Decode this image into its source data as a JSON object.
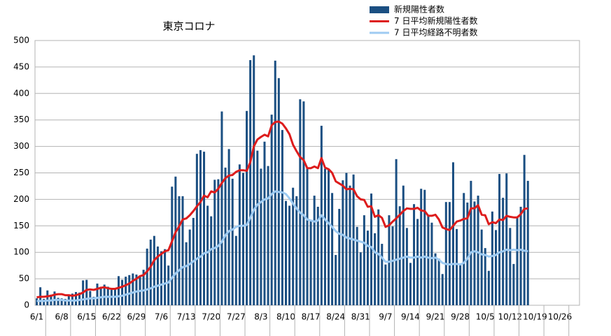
{
  "chart_data": {
    "type": "bar_line",
    "title": "東京コロナ",
    "categories": [
      "6/1",
      null,
      null,
      null,
      null,
      null,
      null,
      "6/8",
      null,
      null,
      null,
      null,
      null,
      null,
      "6/15",
      null,
      null,
      null,
      null,
      null,
      null,
      "6/22",
      null,
      null,
      null,
      null,
      null,
      null,
      "6/29",
      null,
      null,
      null,
      null,
      null,
      null,
      "7/6",
      null,
      null,
      null,
      null,
      null,
      null,
      "7/13",
      null,
      null,
      null,
      null,
      null,
      null,
      "7/20",
      null,
      null,
      null,
      null,
      null,
      null,
      "7/27",
      null,
      null,
      null,
      null,
      null,
      null,
      "8/3",
      null,
      null,
      null,
      null,
      null,
      null,
      "8/10",
      null,
      null,
      null,
      null,
      null,
      null,
      "8/17",
      null,
      null,
      null,
      null,
      null,
      null,
      "8/24",
      null,
      null,
      null,
      null,
      null,
      null,
      "8/31",
      null,
      null,
      null,
      null,
      null,
      null,
      "9/7",
      null,
      null,
      null,
      null,
      null,
      null,
      "9/14",
      null,
      null,
      null,
      null,
      null,
      null,
      "9/21",
      null,
      null,
      null,
      null,
      null,
      null,
      "9/28",
      null,
      null,
      null,
      null,
      null,
      null,
      "10/5",
      null,
      null,
      null,
      null,
      null,
      null,
      "10/12",
      null,
      null,
      null,
      null,
      null,
      null,
      "10/19",
      null,
      null,
      null,
      null,
      null,
      null,
      "10/26",
      null,
      null,
      null,
      null,
      null
    ],
    "series": [
      {
        "name": "新規陽性者数",
        "kind": "bar",
        "color": "#1b4f82",
        "values": [
          13,
          34,
          12,
          28,
          20,
          26,
          14,
          13,
          12,
          18,
          22,
          25,
          24,
          47,
          48,
          27,
          16,
          41,
          35,
          39,
          35,
          29,
          31,
          55,
          48,
          54,
          57,
          60,
          58,
          54,
          67,
          107,
          124,
          131,
          111,
          102,
          106,
          75,
          224,
          243,
          206,
          206,
          119,
          143,
          165,
          286,
          293,
          290,
          188,
          168,
          237,
          238,
          366,
          260,
          295,
          239,
          131,
          266,
          250,
          367,
          463,
          472,
          292,
          258,
          309,
          263,
          360,
          462,
          429,
          331,
          197,
          188,
          222,
          206,
          389,
          385,
          260,
          161,
          207,
          186,
          339,
          258,
          256,
          212,
          95,
          182,
          236,
          250,
          226,
          247,
          148,
          100,
          170,
          141,
          211,
          136,
          181,
          116,
          77,
          170,
          149,
          276,
          187,
          226,
          146,
          80,
          191,
          163,
          220,
          218,
          170,
          156,
          98,
          88,
          59,
          195,
          195,
          270,
          144,
          78,
          212,
          194,
          235,
          196,
          207,
          143,
          108,
          65,
          177,
          142,
          248,
          203,
          249,
          146,
          78,
          166,
          186,
          284,
          235,
          null,
          null,
          null,
          null,
          null,
          null,
          null,
          null,
          null,
          null,
          null,
          null,
          null,
          null
        ]
      },
      {
        "name": "7 日平均新規陽性者数",
        "kind": "line",
        "color": "#dd1c1c",
        "values": [
          15,
          16,
          16,
          17,
          18,
          20,
          21,
          21,
          19,
          19,
          18,
          19,
          21,
          24,
          29,
          30,
          29,
          31,
          33,
          34,
          32,
          31,
          31,
          33,
          35,
          38,
          41,
          46,
          50,
          55,
          57,
          64,
          73,
          85,
          92,
          97,
          102,
          104,
          121,
          138,
          149,
          162,
          164,
          170,
          178,
          187,
          195,
          207,
          204,
          215,
          213,
          220,
          231,
          240,
          245,
          246,
          252,
          255,
          255,
          254,
          270,
          300,
          313,
          318,
          322,
          319,
          340,
          346,
          347,
          343,
          334,
          323,
          303,
          291,
          280,
          274,
          259,
          259,
          262,
          259,
          278,
          260,
          257,
          250,
          234,
          230,
          226,
          219,
          220,
          219,
          206,
          200,
          199,
          186,
          187,
          167,
          170,
          165,
          148,
          151,
          158,
          164,
          171,
          178,
          183,
          182,
          182,
          184,
          179,
          178,
          169,
          169,
          171,
          162,
          147,
          144,
          142,
          150,
          158,
          160,
          163,
          164,
          183,
          183,
          189,
          171,
          170,
          153,
          157,
          155,
          162,
          161,
          169,
          167,
          166,
          166,
          172,
          182,
          183,
          null,
          null,
          null,
          null,
          null,
          null,
          null,
          null,
          null,
          null,
          null,
          null,
          null,
          null
        ]
      },
      {
        "name": "7 日平均経路不明者数",
        "kind": "line",
        "color": "#9ecbf2",
        "values": [
          8,
          8,
          8,
          9,
          9,
          10,
          10,
          10,
          9,
          9,
          9,
          9,
          10,
          11,
          12,
          13,
          13,
          14,
          15,
          16,
          16,
          16,
          16,
          17,
          18,
          20,
          22,
          24,
          26,
          27,
          28,
          30,
          32,
          35,
          37,
          39,
          41,
          43,
          52,
          60,
          66,
          72,
          74,
          78,
          83,
          88,
          92,
          98,
          100,
          106,
          108,
          112,
          120,
          132,
          140,
          143,
          148,
          150,
          150,
          152,
          165,
          180,
          190,
          195,
          200,
          202,
          210,
          215,
          214,
          213,
          210,
          202,
          192,
          183,
          175,
          170,
          162,
          160,
          158,
          160,
          170,
          162,
          155,
          148,
          140,
          135,
          133,
          128,
          126,
          124,
          122,
          120,
          118,
          112,
          110,
          100,
          97,
          90,
          82,
          82,
          84,
          86,
          88,
          90,
          92,
          90,
          90,
          92,
          90,
          92,
          90,
          89,
          90,
          86,
          80,
          78,
          77,
          78,
          78,
          77,
          80,
          88,
          100,
          102,
          100,
          96,
          95,
          92,
          93,
          95,
          100,
          102,
          105,
          104,
          105,
          104,
          105,
          103,
          102,
          null,
          null,
          null,
          null,
          null,
          null,
          null,
          null,
          null,
          null,
          null,
          null,
          null,
          null
        ]
      }
    ],
    "ylim": [
      0,
      500
    ],
    "yticks": [
      0,
      50,
      100,
      150,
      200,
      250,
      300,
      350,
      400,
      450,
      500
    ],
    "grid": true
  }
}
